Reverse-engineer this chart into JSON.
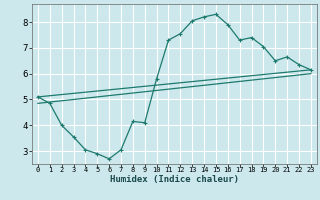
{
  "xlabel": "Humidex (Indice chaleur)",
  "bg_color": "#cce8ec",
  "grid_color": "#ffffff",
  "line_color": "#1e7a6e",
  "xlim": [
    -0.5,
    23.5
  ],
  "ylim": [
    2.5,
    8.7
  ],
  "xticks": [
    0,
    1,
    2,
    3,
    4,
    5,
    6,
    7,
    8,
    9,
    10,
    11,
    12,
    13,
    14,
    15,
    16,
    17,
    18,
    19,
    20,
    21,
    22,
    23
  ],
  "yticks": [
    3,
    4,
    5,
    6,
    7,
    8
  ],
  "line1_x": [
    0,
    1,
    2,
    3,
    4,
    5,
    6,
    7,
    8,
    9,
    10,
    11,
    12,
    13,
    14,
    15,
    16,
    17,
    18,
    19,
    20,
    21,
    22,
    23
  ],
  "line1_y": [
    5.1,
    4.85,
    4.0,
    3.55,
    3.05,
    2.9,
    2.7,
    3.05,
    4.15,
    4.1,
    5.8,
    7.3,
    7.55,
    8.05,
    8.2,
    8.3,
    7.9,
    7.3,
    7.4,
    7.05,
    6.5,
    6.65,
    6.35,
    6.15
  ],
  "line2_x": [
    0,
    23
  ],
  "line2_y": [
    5.1,
    6.15
  ],
  "line3_x": [
    0,
    23
  ],
  "line3_y": [
    4.85,
    6.0
  ]
}
